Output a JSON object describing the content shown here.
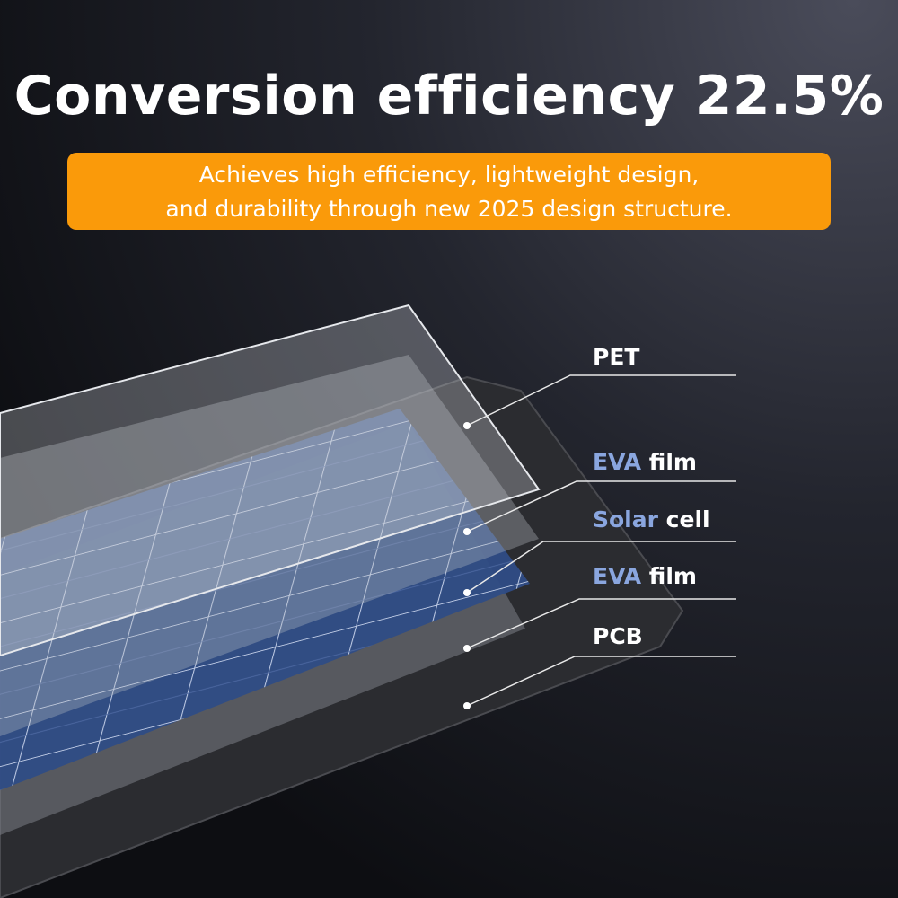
{
  "header": {
    "title": "Conversion efficiency 22.5%",
    "subtitle": [
      "Achieves high efficiency, lightweight design,",
      "and durability through new 2025 design structure."
    ]
  },
  "layers": [
    {
      "text": "PET"
    },
    {
      "accent": "EVA",
      "text": "film"
    },
    {
      "accent": "Solar",
      "text": "cell"
    },
    {
      "accent": "EVA",
      "text": "film"
    },
    {
      "text": "PCB"
    }
  ]
}
